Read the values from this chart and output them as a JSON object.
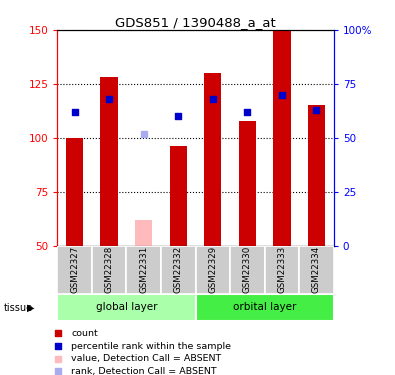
{
  "title": "GDS851 / 1390488_a_at",
  "samples": [
    "GSM22327",
    "GSM22328",
    "GSM22331",
    "GSM22332",
    "GSM22329",
    "GSM22330",
    "GSM22333",
    "GSM22334"
  ],
  "red_bars": [
    100,
    128,
    0,
    96,
    130,
    108,
    150,
    115
  ],
  "pink_bars": [
    0,
    0,
    62,
    0,
    0,
    0,
    0,
    0
  ],
  "blue_dots": [
    112,
    118,
    0,
    110,
    118,
    112,
    120,
    113
  ],
  "light_blue_dots": [
    0,
    0,
    102,
    0,
    0,
    0,
    0,
    0
  ],
  "red_color": "#cc0000",
  "pink_color": "#ffbbbb",
  "blue_color": "#0000cc",
  "light_blue_color": "#aaaaee",
  "ylim_left": [
    50,
    150
  ],
  "ylim_right": [
    0,
    100
  ],
  "yticks_left": [
    50,
    75,
    100,
    125,
    150
  ],
  "yticks_right": [
    0,
    25,
    50,
    75,
    100
  ],
  "ytick_labels_right": [
    "0",
    "25",
    "50",
    "75",
    "100%"
  ],
  "bar_width": 0.5,
  "dot_size": 18,
  "group_defs": [
    {
      "label": "global layer",
      "start": 0,
      "end": 3,
      "color": "#aaffaa"
    },
    {
      "label": "orbital layer",
      "start": 4,
      "end": 7,
      "color": "#44ee44"
    }
  ],
  "legend_items": [
    {
      "label": "count",
      "color": "#cc0000"
    },
    {
      "label": "percentile rank within the sample",
      "color": "#0000cc"
    },
    {
      "label": "value, Detection Call = ABSENT",
      "color": "#ffbbbb"
    },
    {
      "label": "rank, Detection Call = ABSENT",
      "color": "#aaaaee"
    }
  ]
}
